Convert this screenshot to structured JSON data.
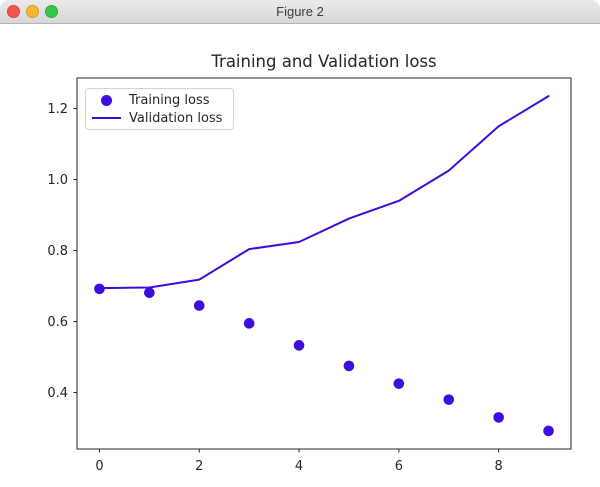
{
  "window": {
    "title": "Figure 2",
    "controls": {
      "close_color": "#f5554a",
      "minimize_color": "#f6b62d",
      "zoom_color": "#34c848"
    }
  },
  "chart_data": {
    "type": "line",
    "title": "Training and Validation loss",
    "xlabel": "",
    "ylabel": "",
    "x": [
      0,
      1,
      2,
      3,
      4,
      5,
      6,
      7,
      8,
      9
    ],
    "series": [
      {
        "name": "Training loss",
        "style": "scatter",
        "marker": "circle",
        "values": [
          0.692,
          0.681,
          0.645,
          0.595,
          0.533,
          0.475,
          0.425,
          0.38,
          0.33,
          0.292
        ]
      },
      {
        "name": "Validation loss",
        "style": "line",
        "values": [
          0.694,
          0.696,
          0.718,
          0.804,
          0.824,
          0.89,
          0.94,
          1.025,
          1.15,
          1.235
        ]
      }
    ],
    "series_color": "#3c0ce0",
    "axis_color": "#262626",
    "xlim": [
      -0.45,
      9.45
    ],
    "ylim": [
      0.241,
      1.286
    ],
    "xticks": [
      0,
      2,
      4,
      6,
      8
    ],
    "yticks": [
      0.4,
      0.6,
      0.8,
      1.0,
      1.2
    ],
    "grid": false,
    "legend_position": "upper left"
  }
}
